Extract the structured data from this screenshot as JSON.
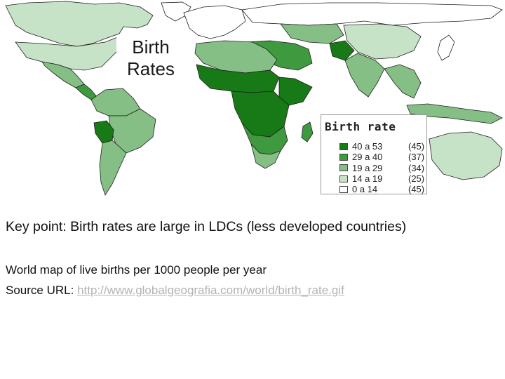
{
  "map": {
    "title_line1": "Birth",
    "title_line2": "Rates",
    "colors": {
      "class1": "#177a17",
      "class2": "#3f9a3f",
      "class3": "#85bf85",
      "class4": "#c7e3c7",
      "class5": "#ffffff",
      "border": "#1e1e1e"
    }
  },
  "legend": {
    "title": "Birth rate",
    "items": [
      {
        "range": "40 a 53",
        "count": "(45)",
        "color": "#177a17"
      },
      {
        "range": "29 a 40",
        "count": "(37)",
        "color": "#3f9a3f"
      },
      {
        "range": "19 a 29",
        "count": "(34)",
        "color": "#85bf85"
      },
      {
        "range": "14 a 19",
        "count": "(25)",
        "color": "#c7e3c7"
      },
      {
        "range": "0 a 14",
        "count": "(45)",
        "color": "#ffffff"
      }
    ]
  },
  "text": {
    "key_point": "Key point: Birth rates are large in LDCs (less developed countries)",
    "caption": "World map of live births per 1000 people per year",
    "source_label": "Source URL:",
    "source_url": "http://www.globalgeografia.com/world/birth_rate.gif"
  }
}
